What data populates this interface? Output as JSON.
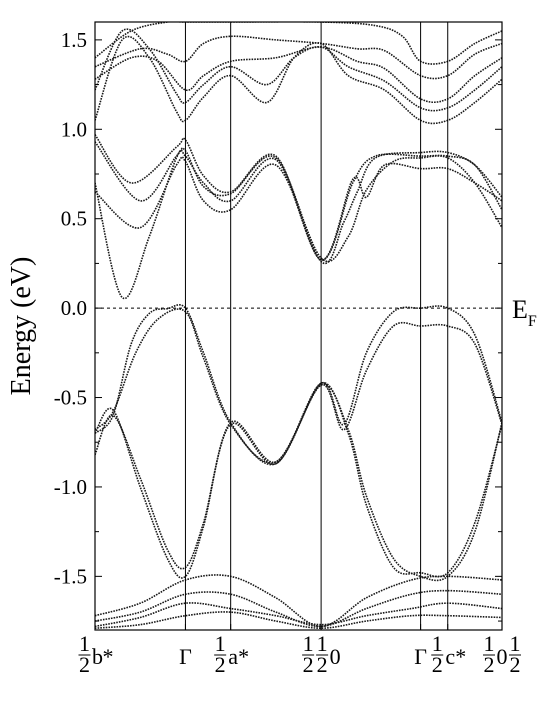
{
  "chart_data": {
    "type": "line",
    "title": "",
    "ylabel": "Energy (eV)",
    "ylim": [
      -1.8,
      1.6
    ],
    "yticks": [
      -1.5,
      -1.0,
      -0.5,
      0.0,
      0.5,
      1.0,
      1.5
    ],
    "ytick_labels": [
      "-1.5",
      "-1.0",
      "-0.5",
      "0.0",
      "0.5",
      "1.0",
      "1.5"
    ],
    "fermi_level": 0.0,
    "fermi_label": "E",
    "fermi_sub": "F",
    "k_points": [
      {
        "x": 0.0,
        "label": "½b*"
      },
      {
        "x": 1.0,
        "label": "Γ"
      },
      {
        "x": 1.5,
        "label": "½a*"
      },
      {
        "x": 2.5,
        "label": "½ ½ 0"
      },
      {
        "x": 3.6,
        "label": "Γ"
      },
      {
        "x": 3.9,
        "label": "½c*"
      },
      {
        "x": 4.5,
        "label": "½ 0 ½"
      }
    ],
    "vertical_lines_x": [
      1.0,
      1.5,
      2.5,
      3.6,
      3.9
    ],
    "series": [
      {
        "values": [
          [
            0,
            0.7
          ],
          [
            0.3,
            0.06
          ],
          [
            0.6,
            0.4
          ],
          [
            0.9,
            0.84
          ],
          [
            1.0,
            0.85
          ],
          [
            1.2,
            0.7
          ],
          [
            1.5,
            0.6
          ],
          [
            2.0,
            0.83
          ],
          [
            2.5,
            0.27
          ],
          [
            2.85,
            0.7
          ],
          [
            3.1,
            0.85
          ],
          [
            3.6,
            0.85
          ],
          [
            3.9,
            0.85
          ],
          [
            4.2,
            0.8
          ],
          [
            4.5,
            0.55
          ]
        ]
      },
      {
        "values": [
          [
            0,
            0.93
          ],
          [
            0.5,
            0.6
          ],
          [
            0.9,
            0.85
          ],
          [
            1.0,
            0.88
          ],
          [
            1.2,
            0.68
          ],
          [
            1.5,
            0.64
          ],
          [
            2.0,
            0.84
          ],
          [
            2.5,
            0.26
          ],
          [
            2.75,
            0.48
          ],
          [
            2.9,
            0.65
          ],
          [
            3.1,
            0.84
          ],
          [
            3.6,
            0.87
          ],
          [
            3.9,
            0.87
          ],
          [
            4.2,
            0.8
          ],
          [
            4.5,
            0.62
          ]
        ]
      },
      {
        "values": [
          [
            0,
            0.97
          ],
          [
            0.4,
            0.7
          ],
          [
            0.9,
            0.9
          ],
          [
            1.0,
            0.94
          ],
          [
            1.2,
            0.74
          ],
          [
            1.5,
            0.65
          ],
          [
            2.0,
            0.85
          ],
          [
            2.5,
            0.27
          ],
          [
            2.85,
            0.72
          ],
          [
            3.0,
            0.62
          ],
          [
            3.2,
            0.8
          ],
          [
            3.6,
            0.78
          ],
          [
            3.9,
            0.78
          ],
          [
            4.2,
            0.7
          ],
          [
            4.5,
            0.6
          ]
        ]
      },
      {
        "values": [
          [
            0,
            0.65
          ],
          [
            0.5,
            0.45
          ],
          [
            0.9,
            0.8
          ],
          [
            1.0,
            0.82
          ],
          [
            1.2,
            0.6
          ],
          [
            1.5,
            0.55
          ],
          [
            2.0,
            0.8
          ],
          [
            2.5,
            0.28
          ],
          [
            2.8,
            0.4
          ],
          [
            3.0,
            0.66
          ],
          [
            3.3,
            0.82
          ],
          [
            3.6,
            0.84
          ],
          [
            3.9,
            0.84
          ],
          [
            4.2,
            0.7
          ],
          [
            4.5,
            0.45
          ]
        ]
      },
      {
        "values": [
          [
            0,
            1.05
          ],
          [
            0.3,
            1.5
          ],
          [
            0.6,
            1.4
          ],
          [
            0.9,
            1.1
          ],
          [
            1.0,
            1.05
          ],
          [
            1.2,
            1.18
          ],
          [
            1.5,
            1.3
          ],
          [
            1.9,
            1.15
          ],
          [
            2.2,
            1.4
          ],
          [
            2.5,
            1.48
          ],
          [
            2.8,
            1.3
          ],
          [
            3.2,
            1.22
          ],
          [
            3.6,
            1.05
          ],
          [
            3.9,
            1.05
          ],
          [
            4.2,
            1.15
          ],
          [
            4.5,
            1.28
          ]
        ]
      },
      {
        "values": [
          [
            0,
            1.22
          ],
          [
            0.3,
            1.55
          ],
          [
            0.6,
            1.45
          ],
          [
            0.9,
            1.2
          ],
          [
            1.0,
            1.15
          ],
          [
            1.2,
            1.25
          ],
          [
            1.5,
            1.35
          ],
          [
            1.9,
            1.25
          ],
          [
            2.2,
            1.4
          ],
          [
            2.5,
            1.46
          ],
          [
            2.8,
            1.35
          ],
          [
            3.2,
            1.27
          ],
          [
            3.6,
            1.12
          ],
          [
            3.9,
            1.12
          ],
          [
            4.2,
            1.22
          ],
          [
            4.5,
            1.35
          ]
        ]
      },
      {
        "values": [
          [
            0,
            1.28
          ],
          [
            0.4,
            1.4
          ],
          [
            0.7,
            1.38
          ],
          [
            1.0,
            1.22
          ],
          [
            1.2,
            1.3
          ],
          [
            1.5,
            1.38
          ],
          [
            2.0,
            1.4
          ],
          [
            2.5,
            1.46
          ],
          [
            2.9,
            1.38
          ],
          [
            3.2,
            1.34
          ],
          [
            3.6,
            1.17
          ],
          [
            3.9,
            1.17
          ],
          [
            4.2,
            1.3
          ],
          [
            4.5,
            1.4
          ]
        ]
      },
      {
        "values": [
          [
            0,
            1.35
          ],
          [
            0.5,
            1.45
          ],
          [
            0.8,
            1.42
          ],
          [
            1.0,
            1.38
          ],
          [
            1.2,
            1.48
          ],
          [
            1.5,
            1.52
          ],
          [
            2.0,
            1.5
          ],
          [
            2.5,
            1.48
          ],
          [
            2.9,
            1.45
          ],
          [
            3.2,
            1.44
          ],
          [
            3.6,
            1.3
          ],
          [
            3.9,
            1.3
          ],
          [
            4.2,
            1.42
          ],
          [
            4.5,
            1.48
          ]
        ]
      },
      {
        "values": [
          [
            0,
            1.4
          ],
          [
            0.4,
            1.55
          ],
          [
            0.8,
            1.6
          ],
          [
            1.0,
            1.6
          ],
          [
            1.5,
            1.6
          ],
          [
            2.5,
            1.6
          ],
          [
            3.1,
            1.58
          ],
          [
            3.4,
            1.52
          ],
          [
            3.6,
            1.38
          ],
          [
            3.9,
            1.38
          ],
          [
            4.2,
            1.48
          ],
          [
            4.5,
            1.55
          ]
        ]
      },
      {
        "values": [
          [
            0,
            -0.82
          ],
          [
            0.2,
            -0.6
          ],
          [
            0.5,
            -0.95
          ],
          [
            0.8,
            -1.35
          ],
          [
            1.0,
            -1.45
          ],
          [
            1.2,
            -1.2
          ],
          [
            1.5,
            -0.65
          ],
          [
            2.0,
            -0.87
          ],
          [
            2.5,
            -0.42
          ],
          [
            2.8,
            -0.7
          ],
          [
            3.0,
            -1.1
          ],
          [
            3.3,
            -1.45
          ],
          [
            3.6,
            -1.48
          ],
          [
            3.9,
            -1.48
          ],
          [
            4.2,
            -1.2
          ],
          [
            4.5,
            -0.65
          ]
        ]
      },
      {
        "values": [
          [
            0,
            -0.7
          ],
          [
            0.2,
            -0.57
          ],
          [
            0.5,
            -1.0
          ],
          [
            0.8,
            -1.4
          ],
          [
            1.0,
            -1.5
          ],
          [
            1.2,
            -1.22
          ],
          [
            1.5,
            -0.64
          ],
          [
            2.0,
            -0.86
          ],
          [
            2.5,
            -0.43
          ],
          [
            2.8,
            -0.68
          ],
          [
            3.0,
            -1.05
          ],
          [
            3.3,
            -1.4
          ],
          [
            3.6,
            -1.5
          ],
          [
            3.9,
            -1.5
          ],
          [
            4.2,
            -1.25
          ],
          [
            4.5,
            -0.64
          ]
        ]
      },
      {
        "values": [
          [
            0,
            -0.7
          ],
          [
            0.2,
            -0.6
          ],
          [
            0.4,
            -0.2
          ],
          [
            0.6,
            -0.03
          ],
          [
            0.8,
            -0.003
          ],
          [
            1.0,
            0.0
          ],
          [
            1.2,
            -0.25
          ],
          [
            1.5,
            -0.64
          ],
          [
            2.0,
            -0.87
          ],
          [
            2.5,
            -0.42
          ],
          [
            2.75,
            -0.65
          ],
          [
            3.0,
            -0.25
          ],
          [
            3.3,
            -0.02
          ],
          [
            3.6,
            0.0
          ],
          [
            3.9,
            0.0
          ],
          [
            4.2,
            -0.15
          ],
          [
            4.5,
            -0.64
          ]
        ]
      },
      {
        "values": [
          [
            0,
            -0.68
          ],
          [
            0.2,
            -0.58
          ],
          [
            0.45,
            -0.25
          ],
          [
            0.7,
            -0.06
          ],
          [
            1.0,
            -0.02
          ],
          [
            1.2,
            -0.28
          ],
          [
            1.5,
            -0.65
          ],
          [
            2.0,
            -0.86
          ],
          [
            2.5,
            -0.43
          ],
          [
            2.75,
            -0.68
          ],
          [
            3.0,
            -0.35
          ],
          [
            3.3,
            -0.1
          ],
          [
            3.6,
            -0.1
          ],
          [
            3.9,
            -0.1
          ],
          [
            4.2,
            -0.2
          ],
          [
            4.5,
            -0.65
          ]
        ]
      },
      {
        "values": [
          [
            0,
            -1.72
          ],
          [
            0.5,
            -1.65
          ],
          [
            1.0,
            -1.52
          ],
          [
            1.5,
            -1.5
          ],
          [
            2.0,
            -1.62
          ],
          [
            2.5,
            -1.78
          ],
          [
            3.0,
            -1.62
          ],
          [
            3.5,
            -1.52
          ],
          [
            3.9,
            -1.5
          ],
          [
            4.5,
            -1.52
          ]
        ]
      },
      {
        "values": [
          [
            0,
            -1.75
          ],
          [
            0.5,
            -1.7
          ],
          [
            1.0,
            -1.6
          ],
          [
            1.5,
            -1.6
          ],
          [
            2.0,
            -1.7
          ],
          [
            2.5,
            -1.78
          ],
          [
            3.0,
            -1.68
          ],
          [
            3.5,
            -1.6
          ],
          [
            3.9,
            -1.58
          ],
          [
            4.5,
            -1.6
          ]
        ]
      },
      {
        "values": [
          [
            0,
            -1.78
          ],
          [
            0.5,
            -1.73
          ],
          [
            1.0,
            -1.65
          ],
          [
            1.5,
            -1.68
          ],
          [
            2.0,
            -1.72
          ],
          [
            2.5,
            -1.77
          ],
          [
            3.0,
            -1.72
          ],
          [
            3.5,
            -1.68
          ],
          [
            3.9,
            -1.65
          ],
          [
            4.5,
            -1.68
          ]
        ]
      },
      {
        "values": [
          [
            0,
            -1.79
          ],
          [
            0.5,
            -1.77
          ],
          [
            1.0,
            -1.72
          ],
          [
            1.5,
            -1.7
          ],
          [
            2.0,
            -1.75
          ],
          [
            2.5,
            -1.79
          ],
          [
            3.0,
            -1.75
          ],
          [
            3.5,
            -1.72
          ],
          [
            3.9,
            -1.72
          ],
          [
            4.5,
            -1.73
          ]
        ]
      }
    ]
  }
}
